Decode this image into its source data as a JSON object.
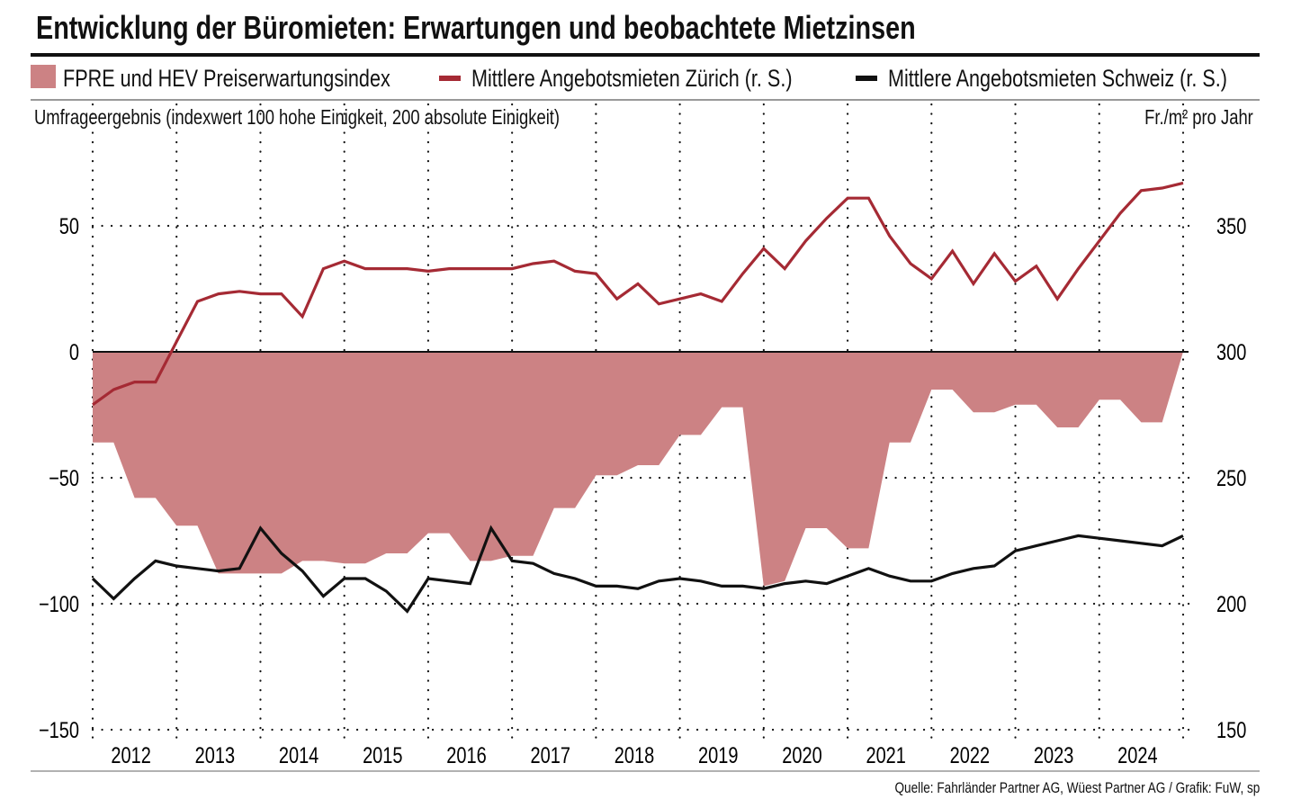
{
  "title": "Entwicklung der Büromieten: Erwartungen und beobachtete Mietzinsen",
  "legend": [
    {
      "label": "FPRE und HEV Preiserwartungsindex",
      "color": "#cc8284",
      "kind": "area"
    },
    {
      "label": "Mittlere Angebotsmieten Zürich (r. S.)",
      "color": "#a52a34",
      "kind": "line"
    },
    {
      "label": "Mittlere Angebotsmieten Schweiz (r. S.)",
      "color": "#111111",
      "kind": "line"
    }
  ],
  "left_axis_label": "Umfrageergebnis (indexwert 100 hohe Einigkeit, 200 absolute Einigkeit)",
  "right_axis_label": "Fr./m² pro Jahr",
  "source": "Quelle: Fahrländer Partner AG, Wüest Partner AG / Grafik: FuW, sp",
  "chart_data": {
    "type": "area+line",
    "title": "Entwicklung der Büromieten: Erwartungen und beobachtete Mietzinsen",
    "xlim": [
      2012,
      2025
    ],
    "x_tick_labels": [
      "2012",
      "2013",
      "2014",
      "2015",
      "2016",
      "2017",
      "2018",
      "2019",
      "2020",
      "2021",
      "2022",
      "2023",
      "2024"
    ],
    "left_ylim": [
      -150,
      75
    ],
    "left_ticks": [
      50,
      0,
      -50,
      -100,
      -150
    ],
    "left_tick_labels": [
      "50",
      "0",
      "−50",
      "−100",
      "−150"
    ],
    "right_ylim": [
      150,
      375
    ],
    "right_ticks": [
      350,
      300,
      250,
      200,
      150
    ],
    "right_tick_labels": [
      "350",
      "300",
      "250",
      "200",
      "150"
    ],
    "grid": "dotted",
    "legend_position": "top",
    "x": [
      2012,
      2012.25,
      2012.5,
      2012.75,
      2013,
      2013.25,
      2013.5,
      2013.75,
      2014,
      2014.25,
      2014.5,
      2014.75,
      2015,
      2015.25,
      2015.5,
      2015.75,
      2016,
      2016.25,
      2016.5,
      2016.75,
      2017,
      2017.25,
      2017.5,
      2017.75,
      2018,
      2018.25,
      2018.5,
      2018.75,
      2019,
      2019.25,
      2019.5,
      2019.75,
      2020,
      2020.25,
      2020.5,
      2020.75,
      2021,
      2021.25,
      2021.5,
      2021.75,
      2022,
      2022.25,
      2022.5,
      2022.75,
      2023,
      2023.25,
      2023.5,
      2023.75,
      2024,
      2024.25,
      2024.5,
      2024.75,
      2025
    ],
    "series": [
      {
        "name": "FPRE und HEV Preiserwartungsindex",
        "axis": "left",
        "type": "area",
        "color": "#cc8284",
        "values": [
          -36,
          -36,
          -58,
          -58,
          -69,
          -69,
          -88,
          -88,
          -88,
          -88,
          -83,
          -83,
          -84,
          -84,
          -80,
          -80,
          -72,
          -72,
          -83,
          -83,
          -81,
          -81,
          -62,
          -62,
          -49,
          -49,
          -45,
          -45,
          -33,
          -33,
          -22,
          -22,
          -93,
          -91,
          -70,
          -70,
          -78,
          -78,
          -36,
          -36,
          -15,
          -15,
          -24,
          -24,
          -21,
          -21,
          -30,
          -30,
          -19,
          -19,
          -28,
          -28,
          0
        ]
      },
      {
        "name": "Mittlere Angebotsmieten Zürich (r. S.)",
        "axis": "right",
        "type": "line",
        "color": "#a52a34",
        "values": [
          279,
          285,
          288,
          288,
          304,
          320,
          323,
          324,
          323,
          323,
          314,
          333,
          336,
          333,
          333,
          333,
          332,
          333,
          333,
          333,
          333,
          335,
          336,
          332,
          331,
          321,
          327,
          319,
          321,
          323,
          320,
          331,
          341,
          333,
          344,
          353,
          361,
          361,
          346,
          335,
          329,
          340,
          327,
          339,
          328,
          334,
          321,
          333,
          344,
          355,
          364,
          365,
          367
        ]
      },
      {
        "name": "Mittlere Angebotsmieten Schweiz (r. S.)",
        "axis": "right",
        "type": "line",
        "color": "#111111",
        "values": [
          210,
          202,
          210,
          217,
          215,
          214,
          213,
          214,
          230,
          220,
          213,
          203,
          210,
          210,
          205,
          197,
          210,
          209,
          208,
          230,
          217,
          216,
          212,
          210,
          207,
          207,
          206,
          209,
          210,
          209,
          207,
          207,
          206,
          208,
          209,
          208,
          211,
          214,
          211,
          209,
          209,
          212,
          214,
          215,
          221,
          223,
          225,
          227,
          226,
          225,
          224,
          223,
          227
        ]
      }
    ]
  }
}
